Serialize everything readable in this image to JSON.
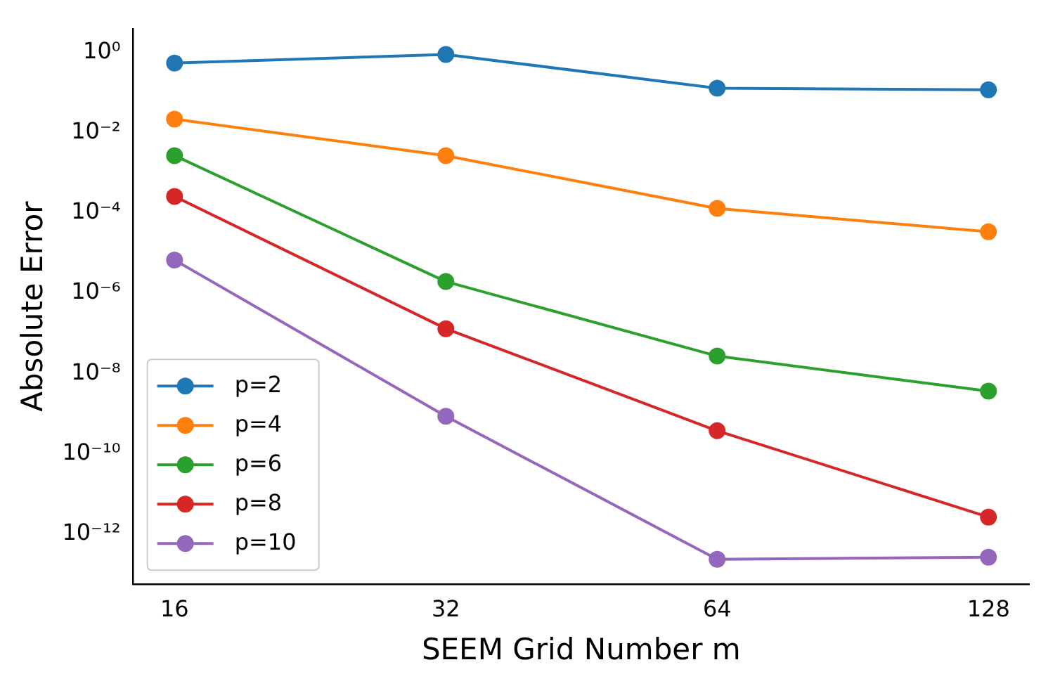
{
  "chart_data": {
    "type": "line",
    "xlabel": "SEEM Grid Number m",
    "ylabel": "Absolute Error",
    "x": [
      16,
      32,
      64,
      128
    ],
    "series": [
      {
        "name": "p=2",
        "color": "#1f77b4",
        "values": [
          0.55,
          0.9,
          0.13,
          0.118
        ]
      },
      {
        "name": "p=4",
        "color": "#ff7f0e",
        "values": [
          0.022,
          0.0027,
          0.00013,
          3.4e-05
        ]
      },
      {
        "name": "p=6",
        "color": "#2ca02c",
        "values": [
          0.0027,
          1.95e-06,
          2.7e-08,
          3.6e-09
        ]
      },
      {
        "name": "p=8",
        "color": "#d62728",
        "values": [
          0.00026,
          1.3e-07,
          3.7e-10,
          2.6e-12
        ]
      },
      {
        "name": "p=10",
        "color": "#9467bd",
        "values": [
          6.7e-06,
          8.5e-10,
          2.3e-13,
          2.6e-13
        ]
      }
    ],
    "log": "xy",
    "xlim": [
      14.4,
      142
    ],
    "ylim": [
      5.5e-14,
      3.9
    ],
    "xticks": [
      16,
      32,
      64,
      128
    ],
    "yticks": [
      {
        "value": 1,
        "label": "10⁰"
      },
      {
        "value": 0.01,
        "label": "10⁻²"
      },
      {
        "value": 0.0001,
        "label": "10⁻⁴"
      },
      {
        "value": 1e-06,
        "label": "10⁻⁶"
      },
      {
        "value": 1e-08,
        "label": "10⁻⁸"
      },
      {
        "value": 1e-10,
        "label": "10⁻¹⁰"
      },
      {
        "value": 1e-12,
        "label": "10⁻¹²"
      }
    ],
    "grid": false,
    "legend": "bottom left",
    "marker": "circle",
    "line_style": "solid"
  }
}
